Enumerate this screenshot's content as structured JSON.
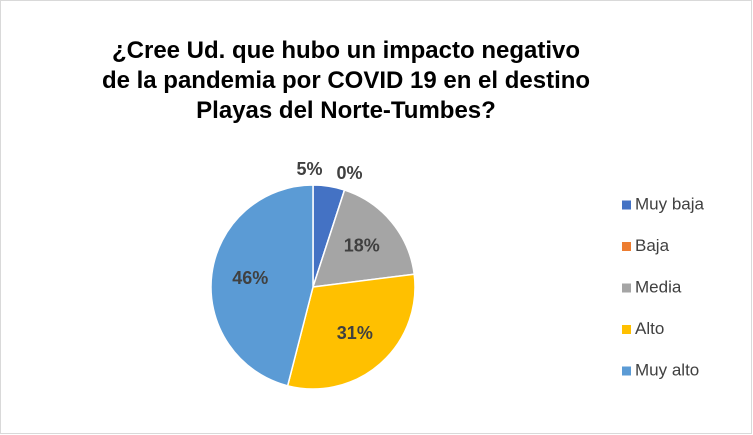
{
  "chart_data": {
    "type": "pie",
    "title": "¿Cree Ud. que hubo un impacto negativo de la pandemia por COVID 19 en el destino Playas del Norte-Tumbes?",
    "categories": [
      "Muy baja",
      "Baja",
      "Media",
      "Alto",
      "Muy alto"
    ],
    "values": [
      5,
      0,
      18,
      31,
      46
    ],
    "value_labels": [
      "5%",
      "0%",
      "18%",
      "31%",
      "46%"
    ],
    "colors": [
      "#4472c4",
      "#ed7d31",
      "#a5a5a5",
      "#ffc000",
      "#5b9bd5"
    ],
    "legend": "right"
  }
}
